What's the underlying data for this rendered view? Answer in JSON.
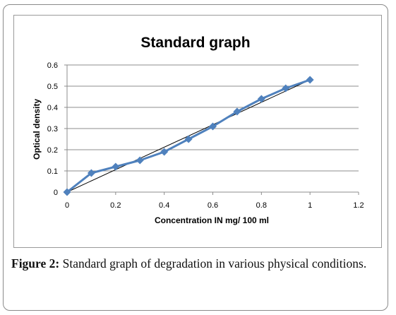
{
  "figure": {
    "label": "Figure 2:",
    "caption": "Standard graph of degradation in various physical conditions."
  },
  "chart_data": {
    "type": "line",
    "title": "Standard graph",
    "xlabel": "Concentration IN mg/ 100 ml",
    "ylabel": "Optical density",
    "xlim": [
      0,
      1.2
    ],
    "ylim": [
      0,
      0.6
    ],
    "xticks": [
      "0",
      "0.2",
      "0.4",
      "0.6",
      "0.8",
      "1",
      "1.2"
    ],
    "yticks": [
      "0",
      "0.1",
      "0.2",
      "0.3",
      "0.4",
      "0.5",
      "0.6"
    ],
    "grid": "horizontal",
    "legend": "none",
    "series": [
      {
        "color": "#4f81bd",
        "marker": "diamond",
        "x": [
          0,
          0.1,
          0.2,
          0.3,
          0.4,
          0.5,
          0.6,
          0.7,
          0.8,
          0.9,
          1.0
        ],
        "y": [
          0,
          0.09,
          0.12,
          0.15,
          0.19,
          0.25,
          0.31,
          0.38,
          0.44,
          0.49,
          0.53
        ]
      }
    ],
    "trendline": {
      "type": "linear",
      "color": "#000000",
      "x": [
        0,
        1.0
      ],
      "y": [
        0,
        0.53
      ]
    }
  }
}
